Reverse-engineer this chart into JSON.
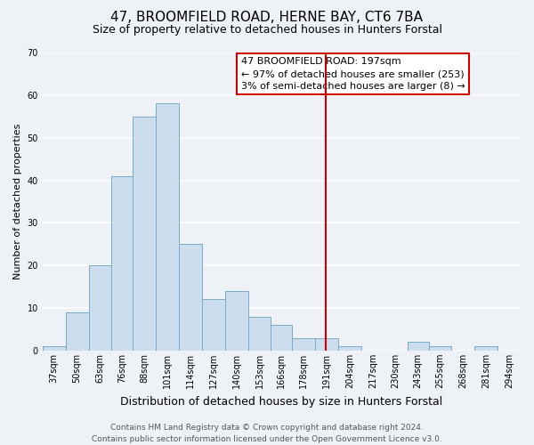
{
  "title": "47, BROOMFIELD ROAD, HERNE BAY, CT6 7BA",
  "subtitle": "Size of property relative to detached houses in Hunters Forstal",
  "xlabel": "Distribution of detached houses by size in Hunters Forstal",
  "ylabel": "Number of detached properties",
  "bin_labels": [
    "37sqm",
    "50sqm",
    "63sqm",
    "76sqm",
    "88sqm",
    "101sqm",
    "114sqm",
    "127sqm",
    "140sqm",
    "153sqm",
    "166sqm",
    "178sqm",
    "191sqm",
    "204sqm",
    "217sqm",
    "230sqm",
    "243sqm",
    "255sqm",
    "268sqm",
    "281sqm",
    "294sqm"
  ],
  "bar_heights": [
    1,
    9,
    20,
    41,
    55,
    58,
    25,
    12,
    14,
    8,
    6,
    3,
    3,
    1,
    0,
    0,
    2,
    1,
    0,
    1,
    0
  ],
  "bar_color": "#ccdded",
  "bar_edgecolor": "#7aaac4",
  "vline_x": 197,
  "bin_edges": [
    37,
    50,
    63,
    76,
    88,
    101,
    114,
    127,
    140,
    153,
    166,
    178,
    191,
    204,
    217,
    230,
    243,
    255,
    268,
    281,
    294,
    307
  ],
  "ylim": [
    0,
    70
  ],
  "yticks": [
    0,
    10,
    20,
    30,
    40,
    50,
    60,
    70
  ],
  "annotation_title": "47 BROOMFIELD ROAD: 197sqm",
  "annotation_line1": "← 97% of detached houses are smaller (253)",
  "annotation_line2": "3% of semi-detached houses are larger (8) →",
  "annotation_box_facecolor": "#ffffff",
  "annotation_box_edgecolor": "#cc0000",
  "footer_line1": "Contains HM Land Registry data © Crown copyright and database right 2024.",
  "footer_line2": "Contains public sector information licensed under the Open Government Licence v3.0.",
  "bg_color": "#eef2f7",
  "grid_color": "#ffffff",
  "title_fontsize": 11,
  "subtitle_fontsize": 9,
  "xlabel_fontsize": 9,
  "ylabel_fontsize": 8,
  "tick_fontsize": 7,
  "annotation_fontsize": 8,
  "footer_fontsize": 6.5
}
